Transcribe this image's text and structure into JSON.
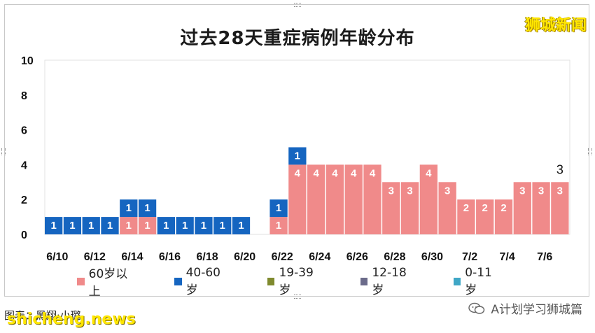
{
  "brand": "狮城新闻",
  "footer": {
    "credit": "图表：黑翔·小璐",
    "site": "shicheng.news",
    "account": "A计划学习狮城篇"
  },
  "chart_data": {
    "type": "bar",
    "stacked": true,
    "title": "过去28天重症病例年龄分布",
    "ylim": [
      0,
      10
    ],
    "yticks": [
      0,
      2,
      4,
      6,
      8,
      10
    ],
    "grid": false,
    "legend_position": "bottom",
    "categories": [
      "6/10",
      "6/11",
      "6/12",
      "6/13",
      "6/14",
      "6/15",
      "6/16",
      "6/17",
      "6/18",
      "6/19",
      "6/20",
      "6/21",
      "6/22",
      "6/23",
      "6/24",
      "6/25",
      "6/26",
      "6/27",
      "6/28",
      "6/29",
      "6/30",
      "7/1",
      "7/2",
      "7/3",
      "7/4",
      "7/5",
      "7/6",
      "7/7"
    ],
    "xtick_labels": [
      "6/10",
      "6/12",
      "6/14",
      "6/16",
      "6/18",
      "6/20",
      "6/22",
      "6/24",
      "6/26",
      "6/28",
      "6/30",
      "7/2",
      "7/4",
      "7/6"
    ],
    "series": [
      {
        "name": "60岁以上",
        "color": "#f08a8a",
        "values": [
          0,
          0,
          0,
          0,
          1,
          1,
          0,
          0,
          0,
          0,
          0,
          0,
          1,
          4,
          4,
          4,
          4,
          4,
          3,
          3,
          4,
          3,
          2,
          2,
          2,
          3,
          3,
          3
        ]
      },
      {
        "name": "40-60岁",
        "color": "#1565c0",
        "values": [
          1,
          1,
          1,
          1,
          1,
          1,
          1,
          1,
          1,
          1,
          1,
          0,
          1,
          1,
          0,
          0,
          0,
          0,
          0,
          0,
          0,
          0,
          0,
          0,
          0,
          0,
          0,
          0
        ]
      },
      {
        "name": "19-39岁",
        "color": "#7f8a2e",
        "values": [
          0,
          0,
          0,
          0,
          0,
          0,
          0,
          0,
          0,
          0,
          0,
          0,
          0,
          0,
          0,
          0,
          0,
          0,
          0,
          0,
          0,
          0,
          0,
          0,
          0,
          0,
          0,
          0
        ]
      },
      {
        "name": "12-18岁",
        "color": "#6b6b8a",
        "values": [
          0,
          0,
          0,
          0,
          0,
          0,
          0,
          0,
          0,
          0,
          0,
          0,
          0,
          0,
          0,
          0,
          0,
          0,
          0,
          0,
          0,
          0,
          0,
          0,
          0,
          0,
          0,
          0
        ]
      },
      {
        "name": "0-11岁",
        "color": "#3fa7c6",
        "values": [
          0,
          0,
          0,
          0,
          0,
          0,
          0,
          0,
          0,
          0,
          0,
          0,
          0,
          0,
          0,
          0,
          0,
          0,
          0,
          0,
          0,
          0,
          0,
          0,
          0,
          0,
          0,
          0
        ]
      }
    ],
    "annotations": [
      {
        "category": "7/7",
        "text": "3"
      }
    ]
  }
}
